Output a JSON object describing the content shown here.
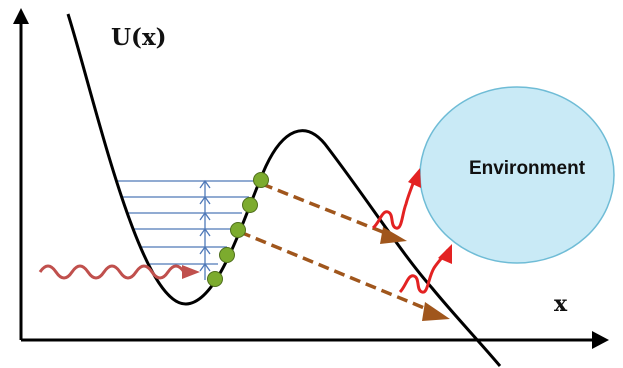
{
  "labels": {
    "potential": "U(x)",
    "x_axis": "x",
    "environment": "Environment"
  },
  "colors": {
    "axis": "#000000",
    "curve": "#000000",
    "levels": "#4f79b8",
    "ladder_arrows": "#4f79b8",
    "states": "#7cab2e",
    "state_outline": "#4f6f1c",
    "tunneling_arrows": "#a0561c",
    "pump_wave": "#c0504d",
    "emission_waves": "#e32222",
    "environment_fill": "#c9eaf6",
    "environment_outline": "#6fbcd6"
  },
  "icons": {
    "states": "green-dot",
    "excitation": "wavy-arrow",
    "transitions": "dashed-arrow"
  }
}
